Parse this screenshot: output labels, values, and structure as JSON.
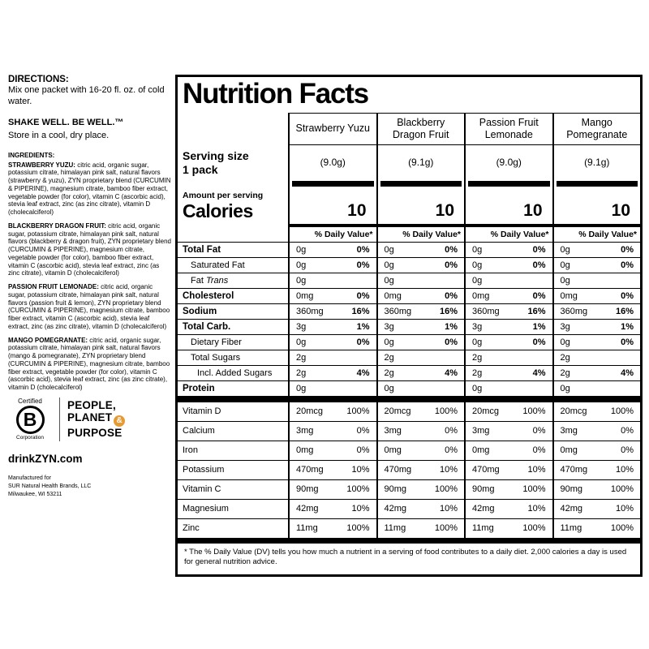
{
  "left_panel": {
    "directions": {
      "title": "DIRECTIONS:",
      "body": "Mix one packet with 16-20 fl. oz. of cold water."
    },
    "shake_line": "SHAKE WELL. BE WELL.™",
    "store_line": "Store in a cool, dry place.",
    "ingredients_title": "INGREDIENTS:",
    "ingredients": [
      {
        "name": "STRAWBERRY YUZU:",
        "text": " citric acid, organic sugar, potassium citrate, himalayan pink salt, natural flavors (strawberry & yuzu), ZYN proprietary blend (CURCUMIN & PIPERINE), magnesium citrate, bamboo fiber extract, vegetable powder (for color), vitamin C (ascorbic acid), stevia leaf extract, zinc (as zinc citrate), vitamin D (cholecalciferol)"
      },
      {
        "name": "BLACKBERRY DRAGON FRUIT:",
        "text": " citric acid, organic sugar, potassium citrate, himalayan pink salt, natural flavors (blackberry & dragon fruit), ZYN proprietary blend (CURCUMIN & PIPERINE), magnesium citrate, vegetable powder (for color), bamboo fiber extract, vitamin C (ascorbic acid), stevia leaf extract, zinc (as zinc citrate), vitamin D (cholecalciferol)"
      },
      {
        "name": "PASSION FRUIT LEMONADE:",
        "text": " citric acid, organic sugar, potassium citrate, himalayan pink salt, natural flavors (passion fruit & lemon), ZYN proprietary blend (CURCUMIN & PIPERINE), magnesium citrate, bamboo fiber extract, vitamin C (ascorbic acid), stevia leaf extract, zinc (as zinc citrate), vitamin D (cholecalciferol)"
      },
      {
        "name": "MANGO POMEGRANATE:",
        "text": " citric acid, organic sugar, potassium citrate, himalayan pink salt, natural flavors (mango & pomegranate), ZYN proprietary blend (CURCUMIN & PIPERINE), magnesium citrate, bamboo fiber extract, vegetable powder (for color), vitamin C (ascorbic acid), stevia leaf extract, zinc (as zinc citrate), vitamin D (cholecalciferol)"
      }
    ],
    "bcorp": {
      "certified": "Certified",
      "letter": "B",
      "corporation": "Corporation",
      "tagline": [
        "PEOPLE,",
        "PLANET",
        "PURPOSE"
      ],
      "ampersand": "&",
      "accent_color": "#E79A33"
    },
    "website": "drinkZYN.com",
    "manufacturer": {
      "line1": "Manufactured for",
      "line2": "SUR Natural Health Brands, LLC",
      "line3": "Milwaukee, WI 53211"
    }
  },
  "nutrition": {
    "title": "Nutrition Facts",
    "flavors": [
      "Strawberry Yuzu",
      "Blackberry Dragon Fruit",
      "Passion Fruit Lemonade",
      "Mango Pomegranate"
    ],
    "serving_size_label": "Serving size",
    "serving_size_sub": "1 pack",
    "serving_sizes": [
      "(9.0g)",
      "(9.1g)",
      "(9.0g)",
      "(9.1g)"
    ],
    "amount_per_serving": "Amount per serving",
    "calories_label": "Calories",
    "calories": [
      "10",
      "10",
      "10",
      "10"
    ],
    "dv_header": "% Daily Value*",
    "macro_rows": [
      {
        "label": "Total Fat",
        "bold": true,
        "indent": 0,
        "amounts": [
          "0g",
          "0g",
          "0g",
          "0g"
        ],
        "dvs": [
          "0%",
          "0%",
          "0%",
          "0%"
        ]
      },
      {
        "label": "Saturated Fat",
        "bold": false,
        "indent": 1,
        "amounts": [
          "0g",
          "0g",
          "0g",
          "0g"
        ],
        "dvs": [
          "0%",
          "0%",
          "0%",
          "0%"
        ]
      },
      {
        "label": "Fat",
        "label_italic": "Trans",
        "bold": false,
        "indent": 1,
        "amounts": [
          "0g",
          "0g",
          "0g",
          "0g"
        ],
        "dvs": [
          "",
          "",
          "",
          ""
        ]
      },
      {
        "label": "Cholesterol",
        "bold": true,
        "indent": 0,
        "amounts": [
          "0mg",
          "0mg",
          "0mg",
          "0mg"
        ],
        "dvs": [
          "0%",
          "0%",
          "0%",
          "0%"
        ]
      },
      {
        "label": "Sodium",
        "bold": true,
        "indent": 0,
        "amounts": [
          "360mg",
          "360mg",
          "360mg",
          "360mg"
        ],
        "dvs": [
          "16%",
          "16%",
          "16%",
          "16%"
        ]
      },
      {
        "label": "Total Carb.",
        "bold": true,
        "indent": 0,
        "amounts": [
          "3g",
          "3g",
          "3g",
          "3g"
        ],
        "dvs": [
          "1%",
          "1%",
          "1%",
          "1%"
        ]
      },
      {
        "label": "Dietary Fiber",
        "bold": false,
        "indent": 1,
        "amounts": [
          "0g",
          "0g",
          "0g",
          "0g"
        ],
        "dvs": [
          "0%",
          "0%",
          "0%",
          "0%"
        ]
      },
      {
        "label": "Total Sugars",
        "bold": false,
        "indent": 1,
        "amounts": [
          "2g",
          "2g",
          "2g",
          "2g"
        ],
        "dvs": [
          "",
          "",
          "",
          ""
        ]
      },
      {
        "label": "Incl. Added Sugars",
        "bold": false,
        "indent": 2,
        "amounts": [
          "2g",
          "2g",
          "2g",
          "2g"
        ],
        "dvs": [
          "4%",
          "4%",
          "4%",
          "4%"
        ]
      },
      {
        "label": "Protein",
        "bold": true,
        "indent": 0,
        "amounts": [
          "0g",
          "0g",
          "0g",
          "0g"
        ],
        "dvs": [
          "",
          "",
          "",
          ""
        ]
      }
    ],
    "vitamin_rows": [
      {
        "label": "Vitamin D",
        "amounts": [
          "20mcg",
          "20mcg",
          "20mcg",
          "20mcg"
        ],
        "dvs": [
          "100%",
          "100%",
          "100%",
          "100%"
        ]
      },
      {
        "label": "Calcium",
        "amounts": [
          "3mg",
          "3mg",
          "3mg",
          "3mg"
        ],
        "dvs": [
          "0%",
          "0%",
          "0%",
          "0%"
        ]
      },
      {
        "label": "Iron",
        "amounts": [
          "0mg",
          "0mg",
          "0mg",
          "0mg"
        ],
        "dvs": [
          "0%",
          "0%",
          "0%",
          "0%"
        ]
      },
      {
        "label": "Potassium",
        "amounts": [
          "470mg",
          "470mg",
          "470mg",
          "470mg"
        ],
        "dvs": [
          "10%",
          "10%",
          "10%",
          "10%"
        ]
      },
      {
        "label": "Vitamin C",
        "amounts": [
          "90mg",
          "90mg",
          "90mg",
          "90mg"
        ],
        "dvs": [
          "100%",
          "100%",
          "100%",
          "100%"
        ]
      },
      {
        "label": "Magnesium",
        "amounts": [
          "42mg",
          "42mg",
          "42mg",
          "42mg"
        ],
        "dvs": [
          "10%",
          "10%",
          "10%",
          "10%"
        ]
      },
      {
        "label": "Zinc",
        "amounts": [
          "11mg",
          "11mg",
          "11mg",
          "11mg"
        ],
        "dvs": [
          "100%",
          "100%",
          "100%",
          "100%"
        ]
      }
    ],
    "footnote": "* The % Daily Value (DV) tells you how much a nutrient in a serving of food contributes to a daily diet. 2,000 calories a day is used for general nutrition advice."
  }
}
